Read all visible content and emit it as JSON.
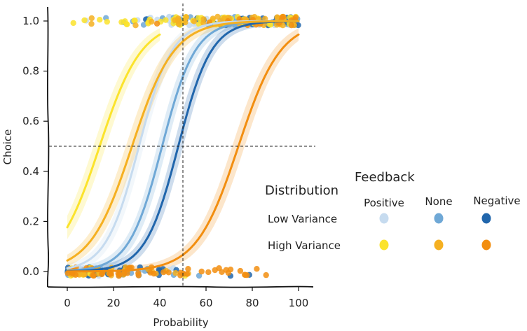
{
  "chart_data": {
    "type": "line",
    "xlabel": "Probability",
    "ylabel": "Choice",
    "xlim": [
      -8,
      108
    ],
    "ylim": [
      -0.04,
      1.05
    ],
    "xticks": [
      "0",
      "20",
      "40",
      "60",
      "80",
      "100"
    ],
    "yticks": [
      "0.0",
      "0.2",
      "0.4",
      "0.6",
      "0.8",
      "1.0"
    ],
    "reference_lines": {
      "x": 50,
      "y": 0.5
    },
    "legend": {
      "title": "Feedback",
      "row_title": "Distribution",
      "columns": [
        "Positive",
        "None",
        "Negative"
      ],
      "rows": [
        "Low Variance",
        "High Variance"
      ],
      "placement": "right"
    },
    "series": [
      {
        "row": "Low Variance",
        "column": "Positive",
        "color": "#c6dbef",
        "midpoint": 31,
        "slope": 0.14,
        "x": [
          0,
          100
        ]
      },
      {
        "row": "Low Variance",
        "column": "None",
        "color": "#6fa8d6",
        "midpoint": 41,
        "slope": 0.14,
        "x": [
          0,
          100
        ]
      },
      {
        "row": "Low Variance",
        "column": "Negative",
        "color": "#2166ac",
        "midpoint": 48,
        "slope": 0.14,
        "x": [
          0,
          100
        ]
      },
      {
        "row": "High Variance",
        "column": "Positive",
        "color": "#fbe32c",
        "midpoint": 14,
        "slope": 0.11,
        "x": [
          0,
          40
        ]
      },
      {
        "row": "High Variance",
        "column": "None",
        "color": "#f5b021",
        "midpoint": 28,
        "slope": 0.11,
        "x": [
          0,
          100
        ]
      },
      {
        "row": "High Variance",
        "column": "Negative",
        "color": "#f28e10",
        "midpoint": 74,
        "slope": 0.11,
        "x": [
          0,
          100
        ]
      }
    ]
  }
}
